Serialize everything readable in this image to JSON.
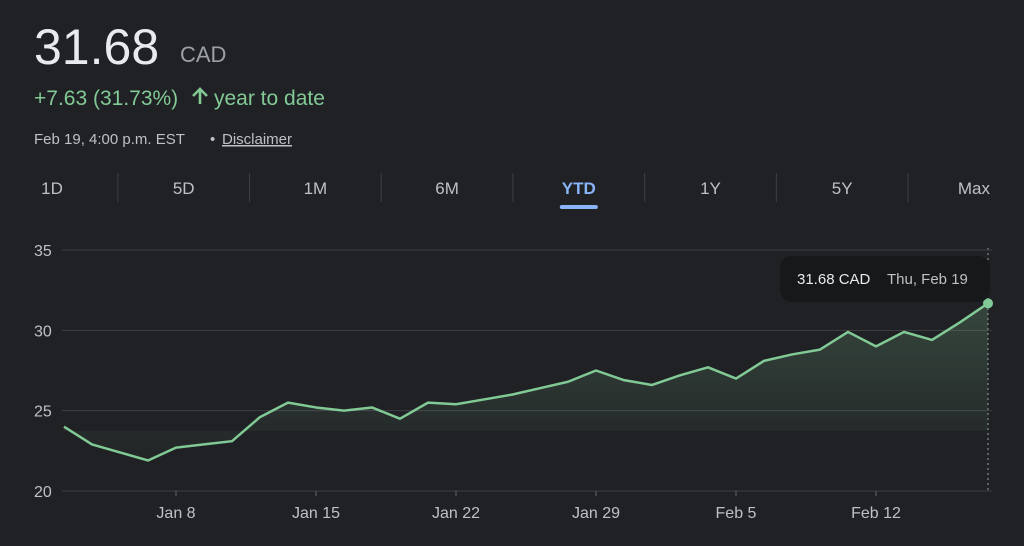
{
  "header": {
    "price": "31.68",
    "currency": "CAD",
    "change": "+7.63 (31.73%)",
    "period": "year to date",
    "timestamp": "Feb 19, 4:00 p.m. EST",
    "separator": "•",
    "disclaimer": "Disclaimer"
  },
  "tabs": {
    "items": [
      "1D",
      "5D",
      "1M",
      "6M",
      "YTD",
      "1Y",
      "5Y",
      "Max"
    ],
    "active": "YTD"
  },
  "tooltip": {
    "value": "31.68 CAD",
    "date": "Thu, Feb 19"
  },
  "chart_data": {
    "type": "line",
    "categories": [
      null,
      null,
      null,
      null,
      "Jan 8",
      null,
      null,
      null,
      null,
      "Jan 15",
      null,
      null,
      null,
      null,
      "Jan 22",
      null,
      null,
      null,
      null,
      "Jan 29",
      null,
      null,
      null,
      null,
      "Feb 5",
      null,
      null,
      null,
      null,
      "Feb 12",
      null,
      null,
      null,
      null
    ],
    "values": [
      24.0,
      22.9,
      22.4,
      21.9,
      22.7,
      22.9,
      23.1,
      24.6,
      25.5,
      25.2,
      25.0,
      25.2,
      24.5,
      25.5,
      25.4,
      25.7,
      26.0,
      26.4,
      26.8,
      27.5,
      26.9,
      26.6,
      27.2,
      27.7,
      27.0,
      28.1,
      28.5,
      28.8,
      29.9,
      29.0,
      29.9,
      29.4,
      30.5,
      31.68
    ],
    "color": "#81c995",
    "ylim": [
      20,
      35
    ],
    "yticks": [
      20,
      25,
      30,
      35
    ],
    "grid": true
  }
}
